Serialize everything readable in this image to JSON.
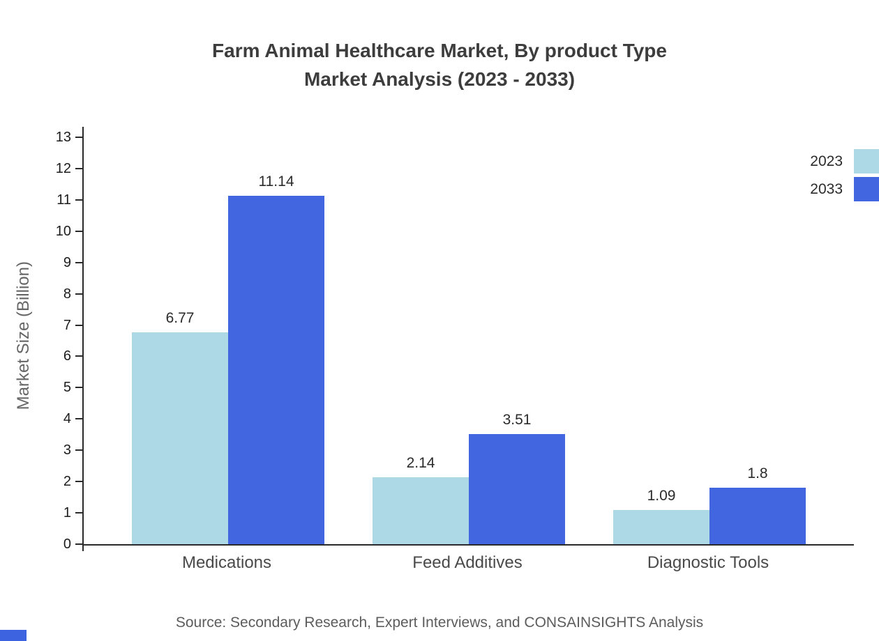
{
  "title": {
    "line1": "Farm Animal Healthcare Market, By product Type",
    "line2": "Market Analysis (2023 - 2033)"
  },
  "source": "Source: Secondary Research, Expert Interviews, and CONSAINSIGHTS Analysis",
  "colors": {
    "series_2023": "#ADD8E6",
    "series_2033": "#4265E0",
    "corner_accent": "#3E63E0",
    "axis": "#2a2a2a"
  },
  "chart_data": {
    "type": "bar",
    "title": "Farm Animal Healthcare Market, By product Type Market Analysis (2023 - 2033)",
    "categories": [
      "Medications",
      "Feed Additives",
      "Diagnostic Tools"
    ],
    "series": [
      {
        "name": "2023",
        "color": "#ADD8E6",
        "values": [
          6.77,
          2.14,
          1.09
        ]
      },
      {
        "name": "2033",
        "color": "#4265E0",
        "values": [
          11.14,
          3.51,
          1.8
        ]
      }
    ],
    "xlabel": "",
    "ylabel": "Market Size (Billion)",
    "ylim": [
      0,
      13
    ],
    "ytick_step": 1,
    "grid": false,
    "legend_position": "top-right"
  }
}
